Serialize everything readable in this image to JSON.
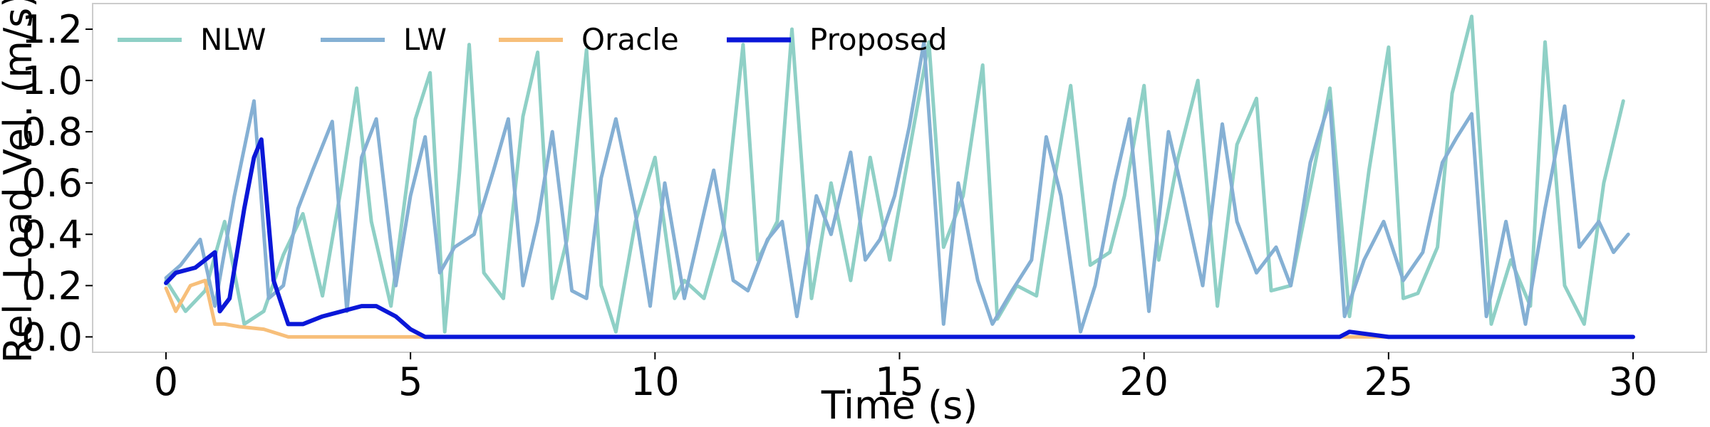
{
  "chart_data": {
    "type": "line",
    "title": "",
    "xlabel": "Time (s)",
    "ylabel": "Rel. Load Vel. (m/s)",
    "xlim": [
      -1.5,
      31.5
    ],
    "ylim": [
      -0.06,
      1.3
    ],
    "xticks": [
      0,
      5,
      10,
      15,
      20,
      25,
      30
    ],
    "yticks": [
      0.0,
      0.2,
      0.4,
      0.6,
      0.8,
      1.0,
      1.2
    ],
    "xtick_labels": [
      "0",
      "5",
      "10",
      "15",
      "20",
      "25",
      "30"
    ],
    "ytick_labels": [
      "0.0",
      "0.2",
      "0.4",
      "0.6",
      "0.8",
      "1.0",
      "1.2"
    ],
    "grid": false,
    "legend": {
      "placement": "top-left",
      "columns": 4
    },
    "series": [
      {
        "name": "NLW",
        "color": "#8fd0c6",
        "x": [
          0,
          0.4,
          0.8,
          1.2,
          1.6,
          2.0,
          2.4,
          2.8,
          3.2,
          3.6,
          3.9,
          4.2,
          4.6,
          5.1,
          5.4,
          5.7,
          6.0,
          6.2,
          6.5,
          6.9,
          7.3,
          7.6,
          7.9,
          8.2,
          8.6,
          8.9,
          9.2,
          9.6,
          10.0,
          10.4,
          10.6,
          11.0,
          11.4,
          11.8,
          12.1,
          12.5,
          12.8,
          13.2,
          13.6,
          14.0,
          14.4,
          14.8,
          15.3,
          15.6,
          15.9,
          16.3,
          16.7,
          17.0,
          17.4,
          17.8,
          18.2,
          18.5,
          18.9,
          19.3,
          19.6,
          20.0,
          20.3,
          20.7,
          21.1,
          21.5,
          21.9,
          22.3,
          22.6,
          23.0,
          23.4,
          23.8,
          24.2,
          24.6,
          25.0,
          25.3,
          25.6,
          26.0,
          26.3,
          26.7,
          27.1,
          27.5,
          27.9,
          28.2,
          28.6,
          29.0,
          29.4,
          29.8
        ],
        "values": [
          0.22,
          0.1,
          0.18,
          0.45,
          0.05,
          0.1,
          0.32,
          0.48,
          0.16,
          0.6,
          0.97,
          0.45,
          0.12,
          0.85,
          1.03,
          0.02,
          0.64,
          1.14,
          0.25,
          0.15,
          0.86,
          1.11,
          0.15,
          0.38,
          1.12,
          0.2,
          0.02,
          0.45,
          0.7,
          0.15,
          0.22,
          0.15,
          0.42,
          1.14,
          0.3,
          0.45,
          1.2,
          0.15,
          0.6,
          0.22,
          0.7,
          0.3,
          0.83,
          1.15,
          0.35,
          0.55,
          1.06,
          0.07,
          0.2,
          0.16,
          0.65,
          0.98,
          0.28,
          0.33,
          0.55,
          0.98,
          0.3,
          0.7,
          1.0,
          0.12,
          0.75,
          0.93,
          0.18,
          0.2,
          0.58,
          0.97,
          0.08,
          0.65,
          1.13,
          0.15,
          0.17,
          0.35,
          0.95,
          1.25,
          0.05,
          0.3,
          0.12,
          1.15,
          0.2,
          0.05,
          0.6,
          0.92
        ]
      },
      {
        "name": "LW",
        "color": "#85b0d4",
        "x": [
          0,
          0.3,
          0.7,
          1.0,
          1.4,
          1.8,
          2.1,
          2.4,
          2.7,
          3.0,
          3.4,
          3.7,
          4.0,
          4.3,
          4.7,
          5.0,
          5.3,
          5.6,
          5.9,
          6.3,
          6.7,
          7.0,
          7.3,
          7.6,
          7.9,
          8.3,
          8.6,
          8.9,
          9.2,
          9.6,
          9.9,
          10.2,
          10.6,
          10.9,
          11.2,
          11.6,
          11.9,
          12.3,
          12.6,
          12.9,
          13.3,
          13.6,
          14.0,
          14.3,
          14.6,
          14.9,
          15.2,
          15.5,
          15.9,
          16.2,
          16.6,
          16.9,
          17.3,
          17.7,
          18.0,
          18.3,
          18.7,
          19.0,
          19.4,
          19.7,
          20.1,
          20.5,
          20.8,
          21.2,
          21.6,
          21.9,
          22.3,
          22.7,
          23.0,
          23.4,
          23.8,
          24.1,
          24.5,
          24.9,
          25.3,
          25.7,
          26.1,
          26.4,
          26.7,
          27.0,
          27.4,
          27.8,
          28.2,
          28.6,
          28.9,
          29.3,
          29.6,
          29.9
        ],
        "values": [
          0.23,
          0.28,
          0.38,
          0.12,
          0.55,
          0.92,
          0.15,
          0.2,
          0.5,
          0.65,
          0.84,
          0.1,
          0.7,
          0.85,
          0.2,
          0.55,
          0.78,
          0.25,
          0.35,
          0.4,
          0.65,
          0.85,
          0.2,
          0.45,
          0.8,
          0.18,
          0.15,
          0.62,
          0.85,
          0.48,
          0.12,
          0.6,
          0.15,
          0.4,
          0.65,
          0.22,
          0.18,
          0.38,
          0.45,
          0.08,
          0.55,
          0.4,
          0.72,
          0.3,
          0.38,
          0.55,
          0.82,
          1.15,
          0.05,
          0.6,
          0.22,
          0.05,
          0.18,
          0.3,
          0.78,
          0.55,
          0.02,
          0.2,
          0.6,
          0.85,
          0.1,
          0.8,
          0.55,
          0.2,
          0.83,
          0.45,
          0.25,
          0.35,
          0.2,
          0.68,
          0.92,
          0.08,
          0.3,
          0.45,
          0.22,
          0.33,
          0.68,
          0.78,
          0.87,
          0.08,
          0.45,
          0.05,
          0.5,
          0.9,
          0.35,
          0.45,
          0.33,
          0.4
        ],
        "line_note": "dense oscillation; approximate trace"
      },
      {
        "name": "Oracle",
        "color": "#f7bf7a",
        "x": [
          0,
          0.2,
          0.5,
          0.8,
          1.0,
          1.2,
          1.5,
          2.0,
          2.5,
          3.0,
          3.5,
          4.0,
          4.5,
          5.0,
          6,
          8,
          10,
          12,
          14,
          16,
          18,
          20,
          22,
          24,
          26,
          28,
          30
        ],
        "values": [
          0.19,
          0.1,
          0.2,
          0.22,
          0.05,
          0.05,
          0.04,
          0.03,
          0.0,
          0.0,
          0.0,
          0.0,
          0.0,
          0.0,
          0.0,
          0.0,
          0.0,
          0.0,
          0.0,
          0.0,
          0.0,
          0.0,
          0.0,
          0.0,
          0.0,
          0.0,
          0.0
        ]
      },
      {
        "name": "Proposed",
        "color": "#0a17d8",
        "x": [
          0,
          0.2,
          0.6,
          1.0,
          1.1,
          1.3,
          1.6,
          1.8,
          1.95,
          2.2,
          2.5,
          2.8,
          3.2,
          3.6,
          4.0,
          4.3,
          4.7,
          5.0,
          5.3,
          6,
          7,
          8,
          9,
          10,
          11,
          12,
          13,
          14,
          15,
          16,
          17,
          18,
          19,
          20,
          21,
          22,
          23,
          24,
          24.2,
          25,
          26,
          27,
          28,
          29,
          30
        ],
        "values": [
          0.21,
          0.25,
          0.27,
          0.33,
          0.1,
          0.15,
          0.5,
          0.7,
          0.77,
          0.22,
          0.05,
          0.05,
          0.08,
          0.1,
          0.12,
          0.12,
          0.08,
          0.03,
          0.0,
          0.0,
          0.0,
          0.0,
          0.0,
          0.0,
          0.0,
          0.0,
          0.0,
          0.0,
          0.0,
          0.0,
          0.0,
          0.0,
          0.0,
          0.0,
          0.0,
          0.0,
          0.0,
          0.0,
          0.02,
          0.0,
          0.0,
          0.0,
          0.0,
          0.0,
          0.0
        ]
      }
    ]
  }
}
